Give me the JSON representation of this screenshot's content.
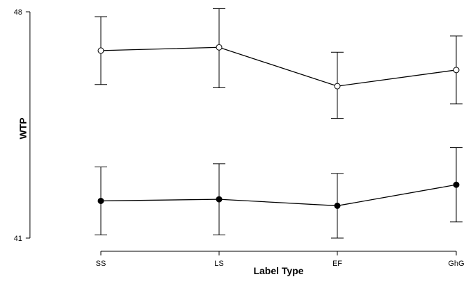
{
  "chart_data": {
    "type": "line",
    "title": "",
    "xlabel": "Label Type",
    "ylabel": "WTP",
    "categories": [
      "SS",
      "LS",
      "EF",
      "GhG"
    ],
    "ylim": [
      41,
      48
    ],
    "yticks": [
      "41",
      "48"
    ],
    "grid": false,
    "legend": "none",
    "series": [
      {
        "marker": "open-circle",
        "color": "#000000",
        "values": [
          46.8,
          46.9,
          45.7,
          46.2
        ],
        "err_low": [
          45.75,
          45.65,
          44.7,
          45.15
        ],
        "err_high": [
          47.85,
          48.1,
          46.75,
          47.25
        ]
      },
      {
        "marker": "filled-circle",
        "color": "#000000",
        "values": [
          42.15,
          42.2,
          42.0,
          42.65
        ],
        "err_low": [
          41.1,
          41.1,
          41.0,
          41.5
        ],
        "err_high": [
          43.2,
          43.3,
          43.0,
          43.8
        ]
      }
    ]
  }
}
